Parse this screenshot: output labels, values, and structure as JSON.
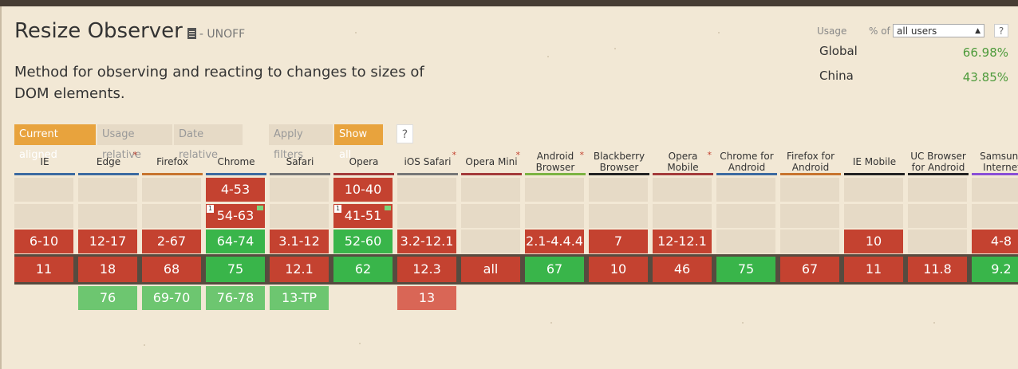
{
  "feature": {
    "title": "Resize Observer",
    "status": "- UNOFF",
    "description": "Method for observing and reacting to changes to sizes of DOM elements."
  },
  "usage": {
    "label": "Usage",
    "pct_of": "% of",
    "selected": "all users",
    "help": "?",
    "regions": [
      {
        "name": "Global",
        "value": "66.98%"
      },
      {
        "name": "China",
        "value": "43.85%"
      }
    ]
  },
  "filters": {
    "current_aligned": "Current aligned",
    "usage_relative": "Usage relative",
    "date_relative": "Date relative",
    "apply_filters": "Apply filters",
    "show_all": "Show all",
    "help": "?"
  },
  "browsers": [
    {
      "name": "IE",
      "starred": false,
      "line": "#3c6aa0",
      "past": [
        null,
        null,
        {
          "v": "6-10",
          "s": "n"
        }
      ],
      "current": {
        "v": "11",
        "s": "n"
      },
      "future": []
    },
    {
      "name": "Edge",
      "starred": true,
      "line": "#3c6aa0",
      "past": [
        null,
        null,
        {
          "v": "12-17",
          "s": "n"
        }
      ],
      "current": {
        "v": "18",
        "s": "n"
      },
      "future": [
        {
          "v": "76",
          "s": "yf"
        }
      ]
    },
    {
      "name": "Firefox",
      "starred": false,
      "line": "#c7742e",
      "past": [
        null,
        null,
        {
          "v": "2-67",
          "s": "n"
        }
      ],
      "current": {
        "v": "68",
        "s": "n"
      },
      "future": [
        {
          "v": "69-70",
          "s": "yf"
        }
      ]
    },
    {
      "name": "Chrome",
      "starred": false,
      "line": "#3c6aa0",
      "past": [
        {
          "v": "4-53",
          "s": "n"
        },
        {
          "v": "54-63",
          "s": "n",
          "note": "1",
          "flag": true
        },
        {
          "v": "64-74",
          "s": "y"
        }
      ],
      "current": {
        "v": "75",
        "s": "y"
      },
      "future": [
        {
          "v": "76-78",
          "s": "yf"
        }
      ]
    },
    {
      "name": "Safari",
      "starred": false,
      "line": "#777777",
      "past": [
        null,
        null,
        {
          "v": "3.1-12",
          "s": "n"
        }
      ],
      "current": {
        "v": "12.1",
        "s": "n"
      },
      "future": [
        {
          "v": "13-TP",
          "s": "yf"
        }
      ]
    },
    {
      "name": "Opera",
      "starred": false,
      "line": "#a33a3a",
      "past": [
        {
          "v": "10-40",
          "s": "n"
        },
        {
          "v": "41-51",
          "s": "n",
          "note": "1",
          "flag": true
        },
        {
          "v": "52-60",
          "s": "y"
        }
      ],
      "current": {
        "v": "62",
        "s": "y"
      },
      "future": []
    },
    {
      "name": "iOS Safari",
      "starred": true,
      "line": "#777777",
      "past": [
        null,
        null,
        {
          "v": "3.2-12.1",
          "s": "n"
        }
      ],
      "current": {
        "v": "12.3",
        "s": "n"
      },
      "future": [
        {
          "v": "13",
          "s": "nf"
        }
      ]
    },
    {
      "name": "Opera Mini",
      "starred": true,
      "line": "#a33a3a",
      "past": [
        null,
        null,
        null
      ],
      "current": {
        "v": "all",
        "s": "n"
      },
      "future": []
    },
    {
      "name": "Android Browser",
      "starred": true,
      "line": "#7cb342",
      "past": [
        null,
        null,
        {
          "v": "2.1-4.4.4",
          "s": "n"
        }
      ],
      "current": {
        "v": "67",
        "s": "y"
      },
      "future": []
    },
    {
      "name": "Blackberry Browser",
      "starred": false,
      "line": "#222222",
      "past": [
        null,
        null,
        {
          "v": "7",
          "s": "n"
        }
      ],
      "current": {
        "v": "10",
        "s": "n"
      },
      "future": []
    },
    {
      "name": "Opera Mobile",
      "starred": true,
      "line": "#a33a3a",
      "past": [
        null,
        null,
        {
          "v": "12-12.1",
          "s": "n"
        }
      ],
      "current": {
        "v": "46",
        "s": "n"
      },
      "future": []
    },
    {
      "name": "Chrome for Android",
      "starred": false,
      "line": "#3c6aa0",
      "past": [
        null,
        null,
        null
      ],
      "current": {
        "v": "75",
        "s": "y"
      },
      "future": []
    },
    {
      "name": "Firefox for Android",
      "starred": false,
      "line": "#c7742e",
      "past": [
        null,
        null,
        null
      ],
      "current": {
        "v": "67",
        "s": "n"
      },
      "future": []
    },
    {
      "name": "IE Mobile",
      "starred": false,
      "line": "#222222",
      "past": [
        null,
        null,
        {
          "v": "10",
          "s": "n"
        }
      ],
      "current": {
        "v": "11",
        "s": "n"
      },
      "future": []
    },
    {
      "name": "UC Browser for Android",
      "starred": false,
      "line": "#222222",
      "past": [
        null,
        null,
        null
      ],
      "current": {
        "v": "11.8",
        "s": "n"
      },
      "future": []
    },
    {
      "name": "Samsung Internet",
      "starred": false,
      "line": "#8a4fd6",
      "past": [
        null,
        null,
        {
          "v": "4-8",
          "s": "n"
        }
      ],
      "current": {
        "v": "9.2",
        "s": "y"
      },
      "future": []
    }
  ],
  "colors": {
    "supported": "#39b54a",
    "unsupported": "#c44230",
    "accent": "#e8a33d",
    "background": "#f2e8d5"
  }
}
